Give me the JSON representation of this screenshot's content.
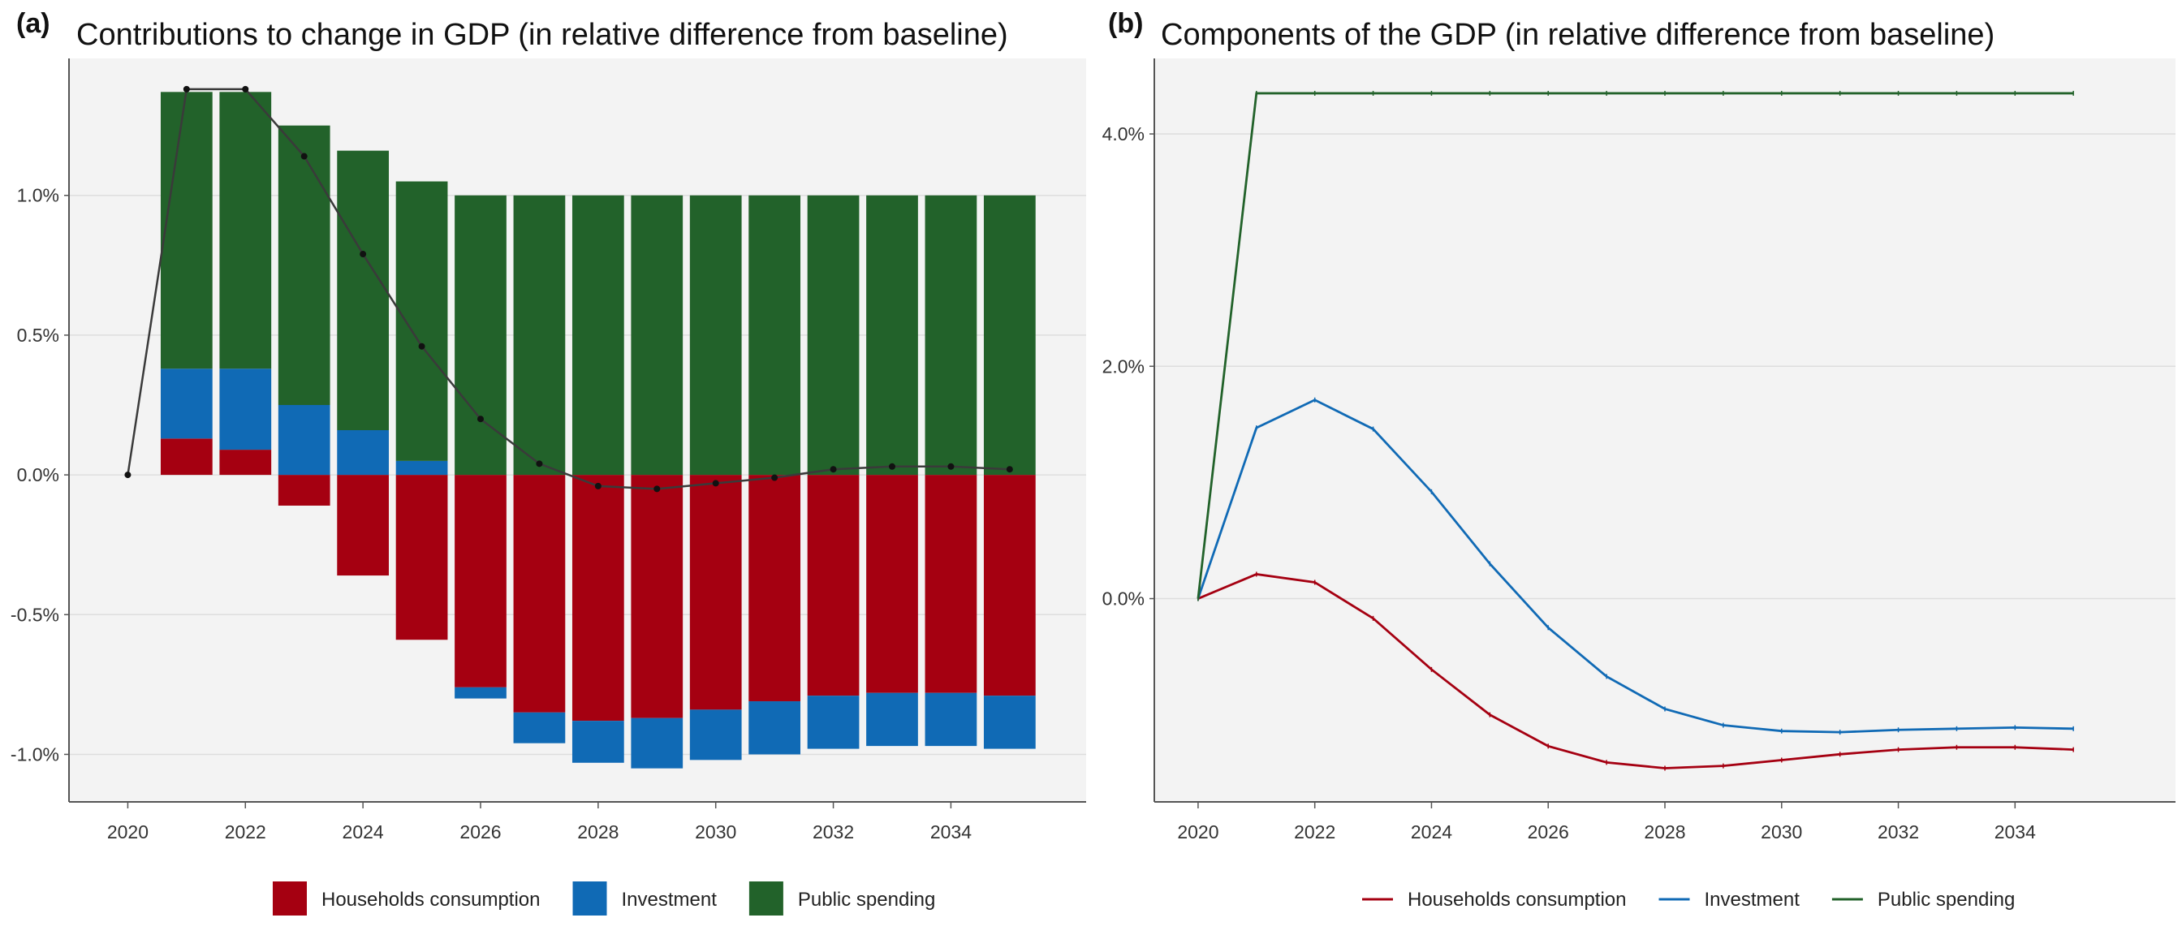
{
  "colors": {
    "households": "#a50011",
    "investment": "#106ab5",
    "public": "#22622a",
    "gdp_line": "#3a3a3a",
    "panel_bg": "#f3f3f3",
    "grid": "#dddddd"
  },
  "chart_data": [
    {
      "panel_label": "(a)",
      "title": "Contributions to change in GDP (in relative difference from baseline)",
      "type": "bar",
      "stacked": true,
      "grid": true,
      "legend_position": "bottom",
      "x": [
        2020,
        2021,
        2022,
        2023,
        2024,
        2025,
        2026,
        2027,
        2028,
        2029,
        2030,
        2031,
        2032,
        2033,
        2034,
        2035
      ],
      "xlim": [
        2019,
        2036.3
      ],
      "x_ticks": [
        2020,
        2022,
        2024,
        2026,
        2028,
        2030,
        2032,
        2034
      ],
      "x_tick_labels": [
        "2020",
        "2022",
        "2024",
        "2026",
        "2028",
        "2030",
        "2032",
        "2034"
      ],
      "ylim": [
        -1.17,
        1.49
      ],
      "y_ticks": [
        -1.0,
        -0.5,
        0.0,
        0.5,
        1.0
      ],
      "y_tick_labels": [
        "-1.0%",
        "-0.5%",
        "0.0%",
        "0.5%",
        "1.0%"
      ],
      "series": [
        {
          "name": "Households consumption",
          "color_key": "households",
          "values": [
            0,
            0.13,
            0.09,
            -0.11,
            -0.36,
            -0.59,
            -0.76,
            -0.85,
            -0.88,
            -0.87,
            -0.84,
            -0.81,
            -0.79,
            -0.78,
            -0.78,
            -0.79
          ]
        },
        {
          "name": "Investment",
          "color_key": "investment",
          "values": [
            0,
            0.25,
            0.29,
            0.25,
            0.16,
            0.05,
            -0.04,
            -0.11,
            -0.15,
            -0.18,
            -0.18,
            -0.19,
            -0.19,
            -0.19,
            -0.19,
            -0.19
          ]
        },
        {
          "name": "Public spending",
          "color_key": "public",
          "values": [
            0,
            0.99,
            0.99,
            1.0,
            1.0,
            1.0,
            1.0,
            1.0,
            1.0,
            1.0,
            1.0,
            1.0,
            1.0,
            1.0,
            1.0,
            1.0
          ]
        }
      ],
      "line_series": {
        "name": "GDP",
        "values": [
          0.0,
          1.38,
          1.38,
          1.14,
          0.79,
          0.46,
          0.2,
          0.04,
          -0.04,
          -0.05,
          -0.03,
          -0.01,
          0.02,
          0.03,
          0.03,
          0.02
        ]
      }
    },
    {
      "panel_label": "(b)",
      "title": "Components of the GDP (in relative difference from baseline)",
      "type": "line",
      "grid": true,
      "legend_position": "bottom",
      "x": [
        2020,
        2021,
        2022,
        2023,
        2024,
        2025,
        2026,
        2027,
        2028,
        2029,
        2030,
        2031,
        2032,
        2033,
        2034,
        2035
      ],
      "xlim": [
        2019.25,
        2036.75
      ],
      "x_ticks": [
        2020,
        2022,
        2024,
        2026,
        2028,
        2030,
        2032,
        2034
      ],
      "x_tick_labels": [
        "2020",
        "2022",
        "2024",
        "2026",
        "2028",
        "2030",
        "2032",
        "2034"
      ],
      "ylim": [
        -1.75,
        4.65
      ],
      "y_ticks": [
        0,
        2,
        4
      ],
      "y_tick_labels": [
        "0.0%",
        "2.0%",
        "4.0%"
      ],
      "series": [
        {
          "name": "Households consumption",
          "color_key": "households",
          "values": [
            0,
            0.21,
            0.14,
            -0.17,
            -0.61,
            -1.0,
            -1.27,
            -1.41,
            -1.46,
            -1.44,
            -1.39,
            -1.34,
            -1.3,
            -1.28,
            -1.28,
            -1.3
          ]
        },
        {
          "name": "Investment",
          "color_key": "investment",
          "values": [
            0,
            1.47,
            1.71,
            1.46,
            0.92,
            0.3,
            -0.25,
            -0.67,
            -0.95,
            -1.09,
            -1.14,
            -1.15,
            -1.13,
            -1.12,
            -1.11,
            -1.12
          ]
        },
        {
          "name": "Public spending",
          "color_key": "public",
          "values": [
            0,
            4.35,
            4.35,
            4.35,
            4.35,
            4.35,
            4.35,
            4.35,
            4.35,
            4.35,
            4.35,
            4.35,
            4.35,
            4.35,
            4.35,
            4.35
          ]
        }
      ]
    }
  ]
}
